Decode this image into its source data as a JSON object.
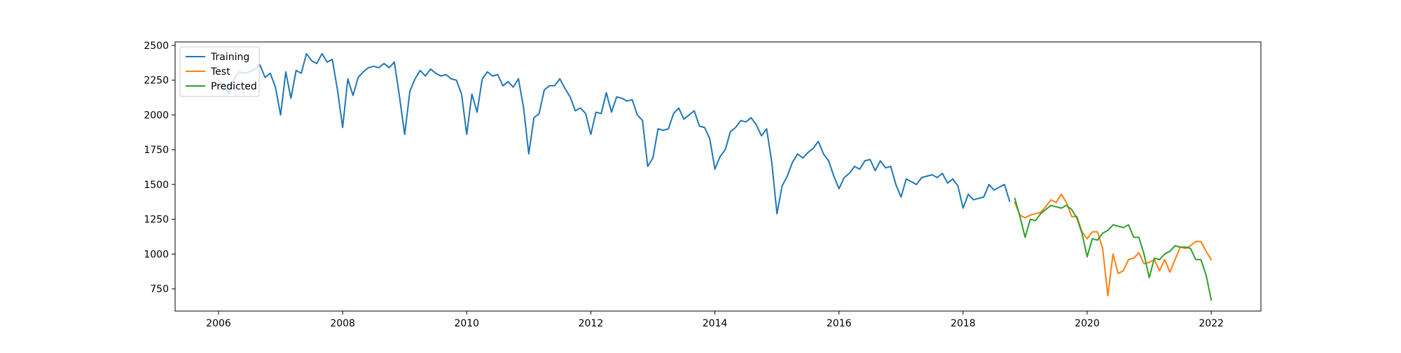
{
  "chart_data": {
    "type": "line",
    "title": "",
    "xlabel": "",
    "ylabel": "",
    "xlim": [
      2005.3,
      2022.8
    ],
    "ylim": [
      590,
      2525
    ],
    "grid": false,
    "legend_position": "top-left",
    "x_ticks": [
      2006,
      2008,
      2010,
      2012,
      2014,
      2016,
      2018,
      2020,
      2022
    ],
    "x_tick_labels": [
      "2006",
      "2008",
      "2010",
      "2012",
      "2014",
      "2016",
      "2018",
      "2020",
      "2022"
    ],
    "y_ticks": [
      750,
      1000,
      1250,
      1500,
      1750,
      2000,
      2250,
      2500
    ],
    "y_tick_labels": [
      "750",
      "1000",
      "1250",
      "1500",
      "1750",
      "2000",
      "2250",
      "2500"
    ],
    "series": [
      {
        "name": "Training",
        "color": "#1f77b4",
        "x_start": 2006.0,
        "x_step": 0.0833333,
        "values": [
          2250,
          2220,
          2150,
          2260,
          2310,
          2300,
          2310,
          2330,
          2360,
          2270,
          2300,
          2200,
          2000,
          2310,
          2120,
          2320,
          2300,
          2440,
          2390,
          2370,
          2440,
          2380,
          2400,
          2180,
          1910,
          2260,
          2140,
          2270,
          2310,
          2340,
          2350,
          2340,
          2370,
          2340,
          2380,
          2130,
          1860,
          2170,
          2260,
          2320,
          2280,
          2330,
          2300,
          2280,
          2290,
          2260,
          2250,
          2150,
          1860,
          2150,
          2020,
          2260,
          2310,
          2280,
          2290,
          2210,
          2240,
          2200,
          2260,
          2050,
          1720,
          1980,
          2010,
          2180,
          2210,
          2210,
          2260,
          2190,
          2130,
          2030,
          2050,
          2010,
          1860,
          2020,
          2010,
          2160,
          2020,
          2130,
          2120,
          2100,
          2110,
          2000,
          1960,
          1630,
          1690,
          1900,
          1890,
          1900,
          2010,
          2050,
          1970,
          2000,
          2030,
          1920,
          1910,
          1830,
          1610,
          1700,
          1750,
          1880,
          1910,
          1960,
          1950,
          1980,
          1930,
          1850,
          1900,
          1660,
          1290,
          1490,
          1560,
          1660,
          1720,
          1690,
          1730,
          1760,
          1810,
          1720,
          1670,
          1560,
          1470,
          1550,
          1580,
          1630,
          1610,
          1670,
          1680,
          1600,
          1670,
          1620,
          1630,
          1500,
          1410,
          1540,
          1520,
          1500,
          1550,
          1560,
          1570,
          1550,
          1580,
          1510,
          1540,
          1490,
          1330,
          1430,
          1390,
          1400,
          1410,
          1500,
          1460,
          1480,
          1500,
          1380
        ]
      },
      {
        "name": "Test",
        "color": "#ff7f0e",
        "x_start": 2018.833,
        "x_step": 0.0833333,
        "values": [
          1370,
          1280,
          1260,
          1280,
          1290,
          1300,
          1340,
          1390,
          1370,
          1430,
          1370,
          1270,
          1270,
          1160,
          1110,
          1160,
          1160,
          1040,
          700,
          1000,
          860,
          880,
          960,
          970,
          1010,
          930,
          940,
          960,
          880,
          960,
          870,
          960,
          1050,
          1040,
          1060,
          1090,
          1090,
          1020,
          960
        ]
      },
      {
        "name": "Predicted",
        "color": "#2ca02c",
        "x_start": 2018.833,
        "x_step": 0.0833333,
        "values": [
          1400,
          1270,
          1120,
          1250,
          1240,
          1290,
          1320,
          1350,
          1340,
          1330,
          1350,
          1320,
          1260,
          1150,
          980,
          1110,
          1100,
          1150,
          1170,
          1210,
          1200,
          1190,
          1210,
          1120,
          1120,
          1000,
          830,
          970,
          960,
          1000,
          1020,
          1060,
          1050,
          1050,
          1040,
          960,
          960,
          850,
          670
        ]
      }
    ]
  }
}
